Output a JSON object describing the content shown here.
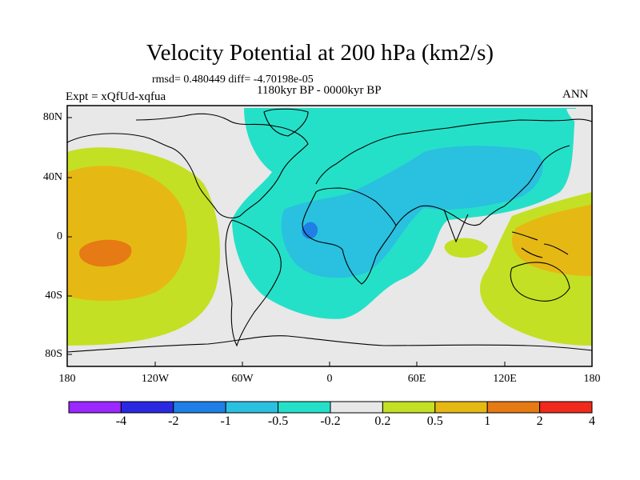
{
  "map": {
    "title": "Velocity Potential at 200 hPa (km2/s)",
    "stats": "rmsd= 0.480449 diff= -4.70198e-05",
    "experiment": "Expt = xQfUd-xqfua",
    "period": "1180kyr BP - 0000kyr BP",
    "season": "ANN",
    "y_ticks": [
      "80N",
      "40N",
      "0",
      "40S",
      "80S"
    ],
    "x_ticks": [
      "180",
      "120W",
      "60W",
      "0",
      "60E",
      "120E",
      "180"
    ]
  },
  "colorbar": {
    "labels": [
      "-4",
      "-2",
      "-1",
      "-0.5",
      "-0.2",
      "0.2",
      "0.5",
      "1",
      "2",
      "4"
    ],
    "colors": [
      "#9a28ff",
      "#2a28e0",
      "#1f7fe6",
      "#2ac0e0",
      "#25e0c8",
      "#e8e8e8",
      "#c4e024",
      "#e6b814",
      "#e67a14",
      "#f02a1c"
    ]
  },
  "field_colors": {
    "land_line": "#000000",
    "background": "#e8e8e8"
  }
}
